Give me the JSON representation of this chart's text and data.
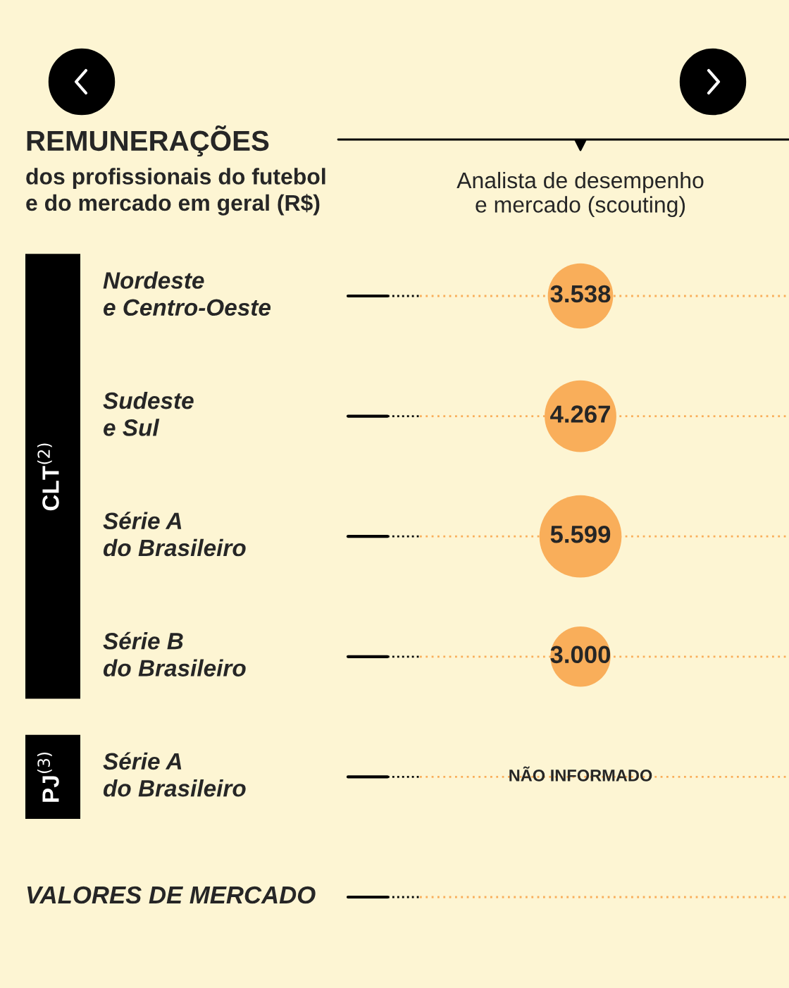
{
  "chart_data": {
    "type": "other",
    "title": "REMUNERAÇÕES",
    "subtitle": "dos profissionais do futebol\ne do mercado em geral (R$)",
    "xlabel": "Analista de desempenho\ne mercado (scouting)",
    "categories": [
      "Nordeste\ne Centro-Oeste",
      "Sudeste\ne Sul",
      "Série A\ndo Brasileiro",
      "Série B\ndo Brasileiro",
      "Série A\ndo Brasileiro",
      "VALORES DE MERCADO"
    ],
    "values": [
      3538,
      4267,
      5599,
      3000,
      null,
      null
    ],
    "value_labels": [
      "3.538",
      "4.267",
      "5.599",
      "3.000",
      "NÃO INFORMADO",
      null
    ],
    "color": "#f9ae5a",
    "annotations": [
      "CLT$^{(2)}$",
      "PJ$^{(3)}$"
    ]
  }
}
